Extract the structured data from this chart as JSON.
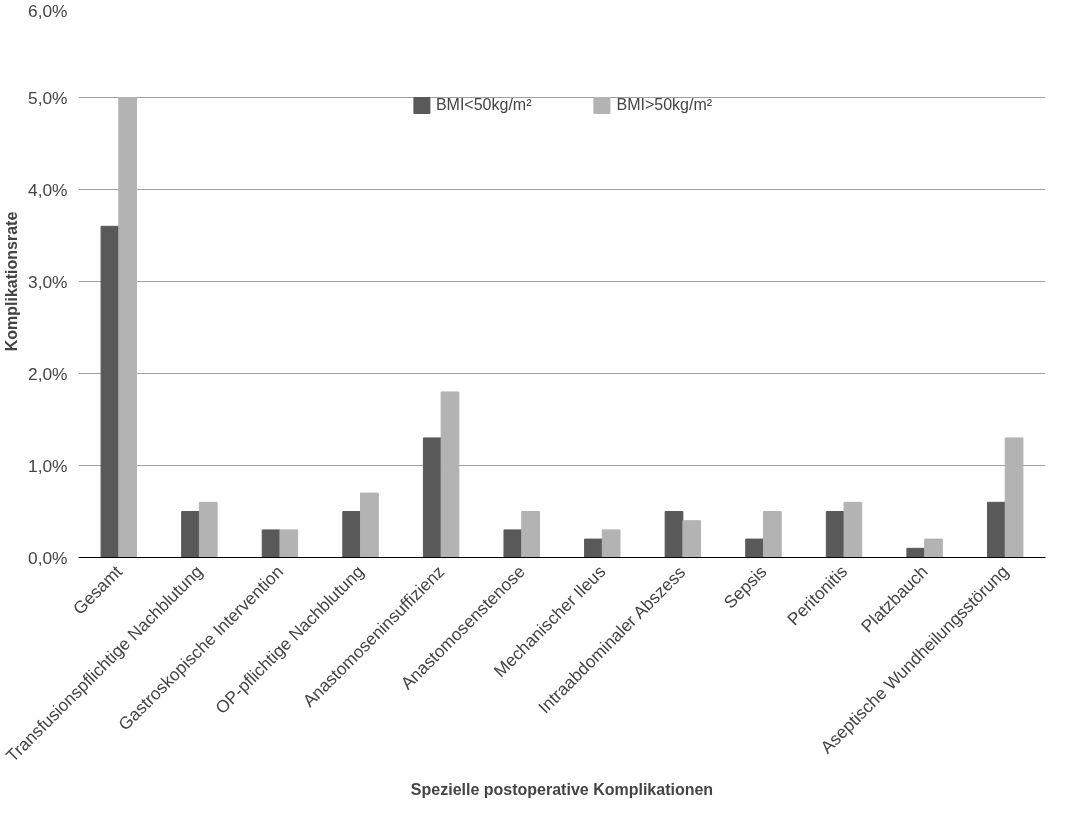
{
  "chart_data": {
    "type": "bar",
    "xlabel": "Spezielle postoperative Komplikationen",
    "ylabel": "Komplikationsrate",
    "categories": [
      "Gesamt",
      "Transfusionspflichtige Nachblutung",
      "Gastroskopische Intervention",
      "OP-pflichtige Nachblutung",
      "Anastomoseninsuffizienz",
      "Anastomosenstenose",
      "Mechanischer Ileus",
      "Intraabdominaler Abszess",
      "Sepsis",
      "Peritonitis",
      "Platzbauch",
      "Aseptische Wundheilungsstörung"
    ],
    "series": [
      {
        "name": "BMI<50kg/m²",
        "color": "#595959",
        "values": [
          3.6,
          0.5,
          0.3,
          0.5,
          1.3,
          0.3,
          0.2,
          0.5,
          0.2,
          0.5,
          0.1,
          0.6
        ]
      },
      {
        "name": "BMI>50kg/m²",
        "color": "#b3b3b3",
        "values": [
          5.0,
          0.6,
          0.3,
          0.7,
          1.8,
          0.5,
          0.3,
          0.4,
          0.5,
          0.6,
          0.2,
          1.3
        ]
      }
    ],
    "ylim": [
      0,
      6
    ],
    "yticks": [
      {
        "value": 0,
        "label": "0,0%"
      },
      {
        "value": 1,
        "label": "1,0%"
      },
      {
        "value": 2,
        "label": "2,0%"
      },
      {
        "value": 3,
        "label": "3,0%"
      },
      {
        "value": 4,
        "label": "4,0%"
      },
      {
        "value": 5,
        "label": "5,0%"
      },
      {
        "value": 6,
        "label": "6,0%"
      }
    ],
    "grid": "y",
    "legend": "top"
  }
}
